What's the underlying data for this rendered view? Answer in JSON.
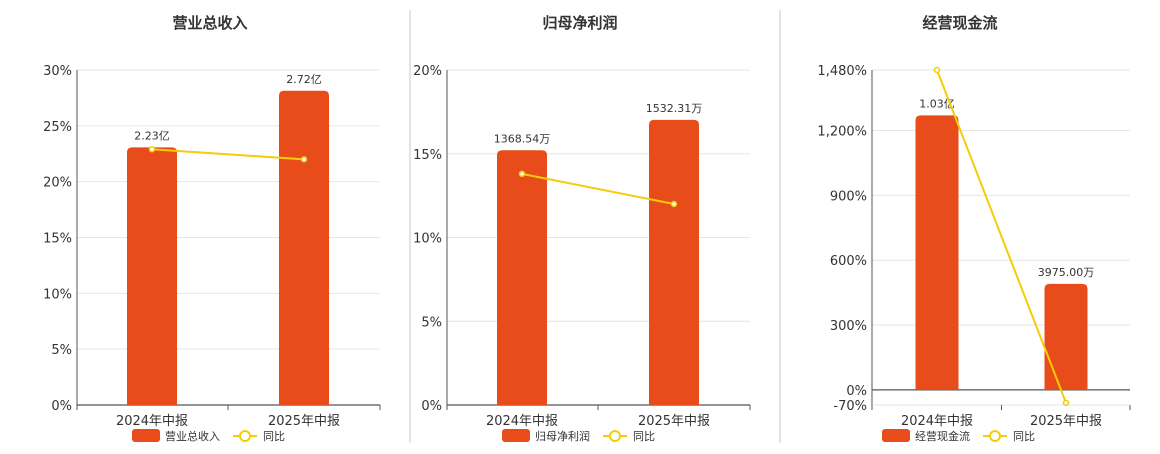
{
  "colors": {
    "bar": "#E84C1A",
    "line": "#F5CC0A",
    "grid": "#e6e6e6",
    "axis": "#555555",
    "divider": "#c8c8c8"
  },
  "legend_line_label": "同比",
  "chart_data": [
    {
      "type": "bar",
      "title": "营业总收入",
      "categories": [
        "2024年中报",
        "2025年中报"
      ],
      "series": [
        {
          "name": "营业总收入",
          "type": "bar",
          "values": [
            2.23,
            2.72
          ],
          "labels": [
            "2.23亿",
            "2.72亿"
          ]
        },
        {
          "name": "同比",
          "type": "line",
          "values": [
            22.9,
            22.0
          ]
        }
      ],
      "y_right_max": 2.9,
      "ylim": [
        0,
        30
      ],
      "yticks": [
        "0%",
        "5%",
        "10%",
        "15%",
        "20%",
        "25%",
        "30%"
      ],
      "ytick_values": [
        0,
        5,
        10,
        15,
        20,
        25,
        30
      ],
      "legend": "bottom",
      "grid": true
    },
    {
      "type": "bar",
      "title": "归母净利润",
      "categories": [
        "2024年中报",
        "2025年中报"
      ],
      "series": [
        {
          "name": "归母净利润",
          "type": "bar",
          "values": [
            1368.54,
            1532.31
          ],
          "labels": [
            "1368.54万",
            "1532.31万"
          ]
        },
        {
          "name": "同比",
          "type": "line",
          "values": [
            13.8,
            12.0
          ]
        }
      ],
      "y_right_max": 1800,
      "ylim": [
        0,
        20
      ],
      "yticks": [
        "0%",
        "5%",
        "10%",
        "15%",
        "20%"
      ],
      "ytick_values": [
        0,
        5,
        10,
        15,
        20
      ],
      "legend": "bottom",
      "grid": true
    },
    {
      "type": "bar",
      "title": "经营现金流",
      "categories": [
        "2024年中报",
        "2025年中报"
      ],
      "series": [
        {
          "name": "经营现金流",
          "type": "bar",
          "values": [
            10300,
            3975.0
          ],
          "labels": [
            "1.03亿",
            "3975.00万"
          ]
        },
        {
          "name": "同比",
          "type": "line",
          "values": [
            1480,
            -60
          ]
        }
      ],
      "y_right_max": 12000,
      "ylim": [
        -70,
        1480
      ],
      "yticks": [
        "-70%",
        "0%",
        "300%",
        "600%",
        "900%",
        "1,200%",
        "1,480%"
      ],
      "ytick_values": [
        -70,
        0,
        300,
        600,
        900,
        1200,
        1480
      ],
      "legend": "bottom",
      "grid": true
    }
  ]
}
